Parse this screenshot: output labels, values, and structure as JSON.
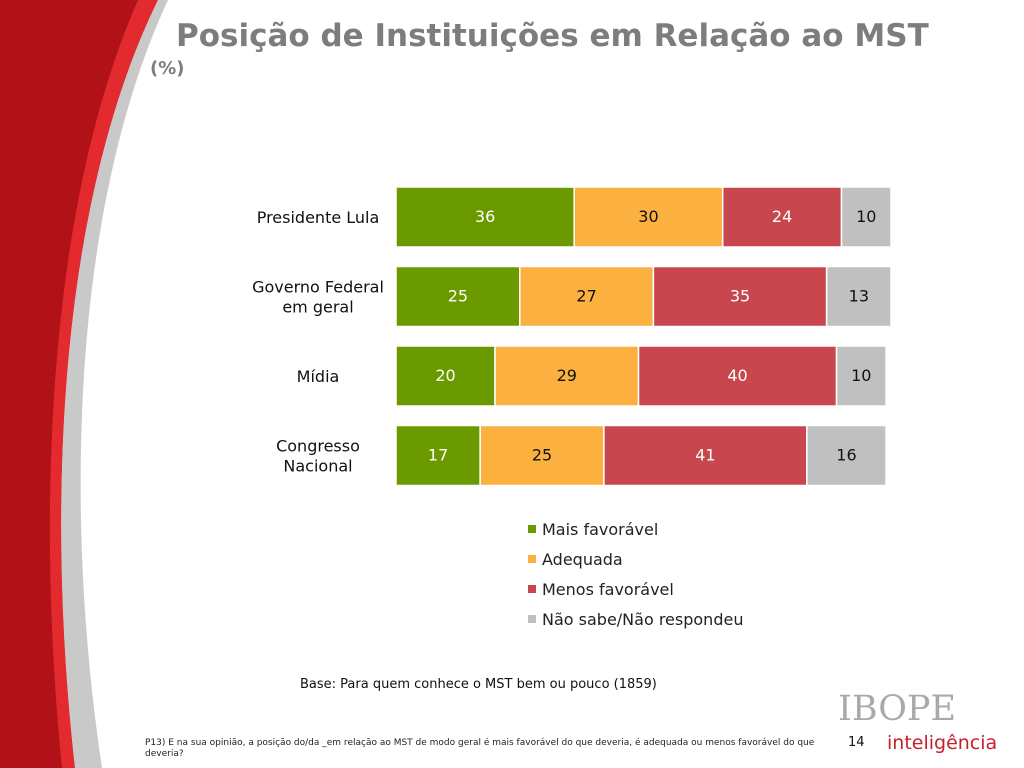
{
  "title": "Posição de Instituições em Relação ao MST",
  "subtitle": "(%)",
  "chart_data": {
    "type": "bar",
    "orientation": "horizontal",
    "stacked": true,
    "categories": [
      [
        "Presidente Lula"
      ],
      [
        "Governo Federal",
        "em geral"
      ],
      [
        "Mídia"
      ],
      [
        "Congresso",
        "Nacional"
      ]
    ],
    "series": [
      {
        "name": "Mais favorável",
        "color": "#6a9a00",
        "label_color": "#ffffff",
        "values": [
          36,
          25,
          20,
          17
        ]
      },
      {
        "name": "Adequada",
        "color": "#fbb040",
        "label_color": "#111111",
        "values": [
          30,
          27,
          29,
          25
        ]
      },
      {
        "name": "Menos favorável",
        "color": "#c8474f",
        "label_color": "#ffffff",
        "values": [
          24,
          35,
          40,
          41
        ]
      },
      {
        "name": "Não sabe/Não respondeu",
        "color": "#c0c0c0",
        "label_color": "#111111",
        "values": [
          10,
          13,
          10,
          16
        ]
      }
    ],
    "xlim": [
      0,
      100
    ],
    "legend_position": "bottom-right"
  },
  "base_note": "Base: Para quem conhece o MST bem ou pouco (1859)",
  "footnote": "P13) E na sua opinião, a posição do/da _em relação ao MST de modo geral é mais favorável do que deveria, é adequada ou menos favorável do que deveria?",
  "page_number": "14",
  "logo": {
    "brand": "IBOPE",
    "tagline": "inteligência"
  },
  "colors": {
    "accent_red": "#b01218",
    "bright_red": "#e32a2e",
    "title_gray": "#7d7d7d"
  }
}
